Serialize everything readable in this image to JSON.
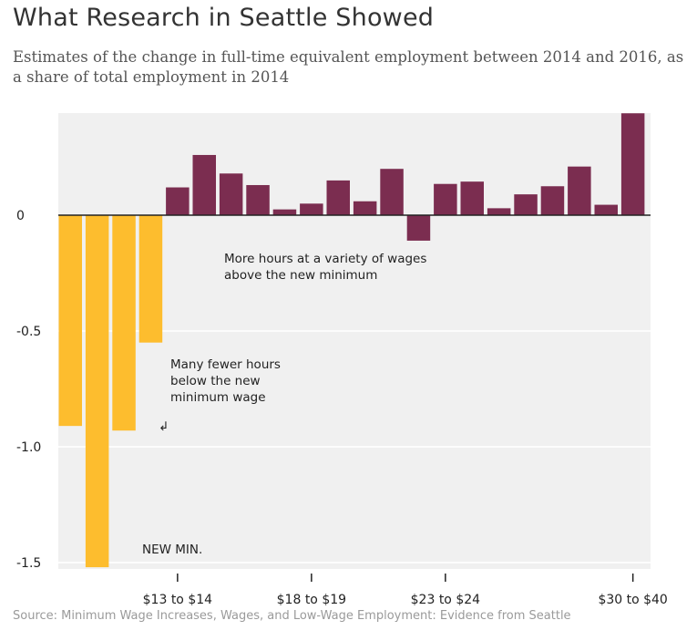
{
  "title": "What Research in Seattle Showed",
  "subtitle": "Estimates of the change in full-time equivalent employment between 2014 and 2016, as a share of total employment in 2014",
  "source": "Source: Minimum Wage Increases, Wages, and Low-Wage Employment: Evidence from Seattle",
  "colors": {
    "negative_bar": "#FDBD2E",
    "positive_bar": "#7B2D50",
    "plot_background": "#F0F0F0",
    "gridline": "#FFFFFF",
    "zero_line": "#222222"
  },
  "chart_data": {
    "type": "bar",
    "title": "What Research in Seattle Showed",
    "xlabel": "",
    "ylabel": "",
    "ylim": [
      -1.52,
      0.44
    ],
    "grid": true,
    "yticks": [
      {
        "value": 0,
        "label": "0"
      },
      {
        "value": -0.5,
        "label": "-0.5"
      },
      {
        "value": -1.0,
        "label": "-1.0"
      },
      {
        "value": -1.5,
        "label": "-1.5"
      }
    ],
    "xticks": [
      {
        "bar_index": 4,
        "label": "$13 to $14"
      },
      {
        "bar_index": 9,
        "label": "$18 to $19"
      },
      {
        "bar_index": 14,
        "label": "$23 to $24"
      },
      {
        "bar_index": 21,
        "label": "$30 to $40"
      }
    ],
    "values": [
      -0.91,
      -1.52,
      -0.93,
      -0.55,
      0.12,
      0.26,
      0.18,
      0.13,
      0.025,
      0.05,
      0.15,
      0.06,
      0.2,
      -0.11,
      0.135,
      0.145,
      0.03,
      0.09,
      0.125,
      0.21,
      0.045,
      0.44
    ],
    "highlight_count": 4
  },
  "annotations": {
    "above": [
      "More hours at a variety of wages",
      "above the new minimum"
    ],
    "below": [
      "Many fewer hours",
      "below the new",
      "minimum wage"
    ],
    "arrow": "↲",
    "new_min": "NEW MIN."
  }
}
